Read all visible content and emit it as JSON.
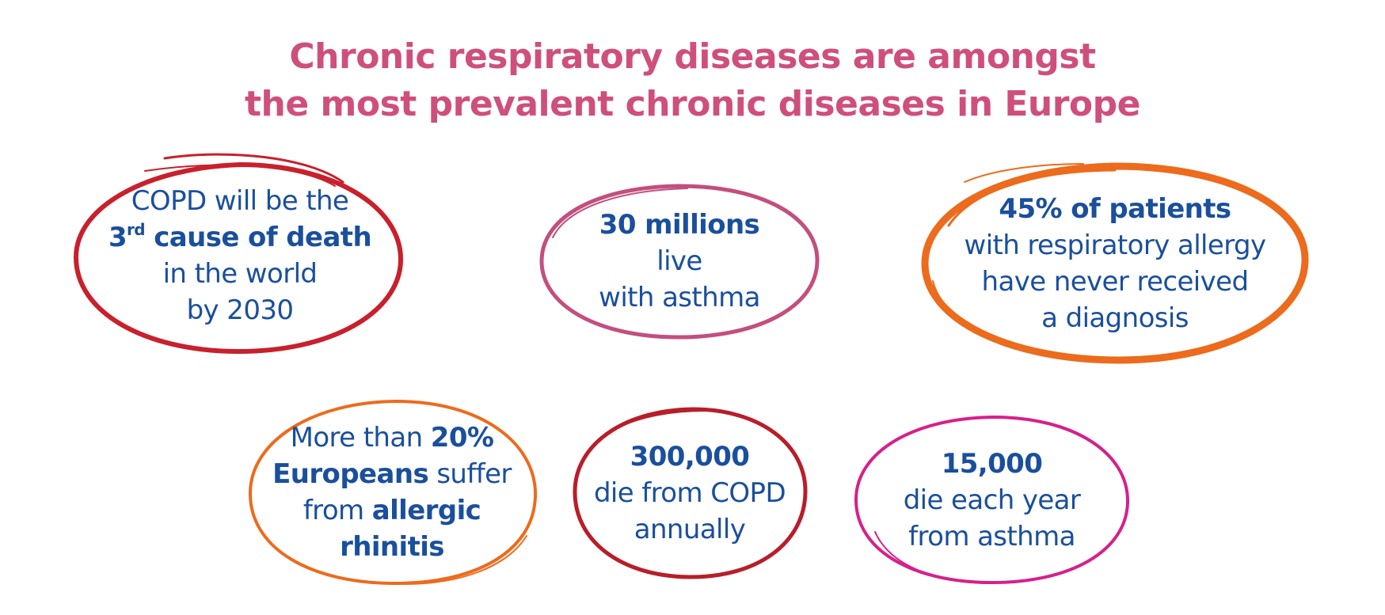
{
  "title": {
    "line1": "Chronic respiratory diseases are amongst",
    "line2": "the most prevalent chronic diseases in Europe"
  },
  "colors": {
    "title": "#cf4f7c",
    "text": "#1a4f9c",
    "red": "#c8202c",
    "pink": "#c34f7e",
    "orange": "#ec6b1c",
    "magenta": "#d6208a"
  },
  "bubbles": {
    "copd_death": {
      "l1": "COPD will be the",
      "rank_num": "3",
      "rank_suffix": "rd",
      "rank_rest": " cause of death",
      "l3": "in the world",
      "l4": "by 2030"
    },
    "asthma_live": {
      "l1": "30 millions",
      "l2": "live",
      "l3": "with asthma"
    },
    "allergy_diagnosis": {
      "l1": "45% of patients",
      "l2": "with respiratory allergy",
      "l3": "have never received",
      "l4": "a diagnosis"
    },
    "rhinitis": {
      "l1a": "More than ",
      "l1b": "20%",
      "l2a": "Europeans",
      "l2b": " suffer",
      "l3a": "from ",
      "l3b": "allergic",
      "l4": "rhinitis"
    },
    "copd_die": {
      "l1": "300,000",
      "l2": "die from COPD",
      "l3": "annually"
    },
    "asthma_die": {
      "l1": "15,000",
      "l2": "die each year",
      "l3": "from asthma"
    }
  }
}
